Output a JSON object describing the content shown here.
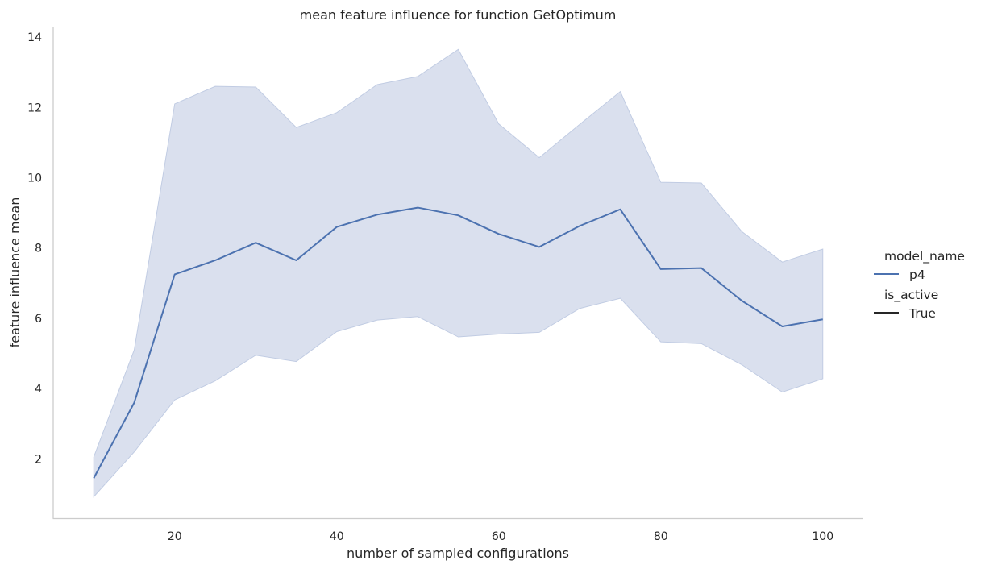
{
  "chart_data": {
    "type": "line",
    "title": "mean feature influence for function GetOptimum",
    "xlabel": "number of sampled configurations",
    "ylabel": "feature influence mean",
    "xlim": [
      5,
      105
    ],
    "ylim": [
      0.3,
      14.3
    ],
    "xticks": [
      20,
      40,
      60,
      80,
      100
    ],
    "yticks": [
      2,
      4,
      6,
      8,
      10,
      12,
      14
    ],
    "grid": false,
    "legend_position": "right",
    "x": [
      10,
      15,
      20,
      25,
      30,
      35,
      40,
      45,
      50,
      55,
      60,
      65,
      70,
      75,
      80,
      85,
      90,
      95,
      100
    ],
    "series": [
      {
        "name": "p4",
        "color": "#4c72b0",
        "band_color": "#c1cce3",
        "values": [
          1.45,
          3.6,
          7.25,
          7.65,
          8.15,
          7.65,
          8.6,
          8.95,
          9.15,
          8.93,
          8.4,
          8.03,
          8.63,
          9.1,
          7.4,
          7.43,
          6.5,
          5.77,
          5.97
        ],
        "ci_upper": [
          2.05,
          5.1,
          12.1,
          12.6,
          12.58,
          11.43,
          11.85,
          12.65,
          12.88,
          13.65,
          11.53,
          10.57,
          11.52,
          12.45,
          9.87,
          9.85,
          8.47,
          7.6,
          7.97
        ],
        "ci_lower": [
          0.92,
          2.2,
          3.68,
          4.22,
          4.95,
          4.77,
          5.62,
          5.95,
          6.05,
          5.47,
          5.55,
          5.6,
          6.28,
          6.57,
          5.33,
          5.28,
          4.68,
          3.9,
          4.28
        ]
      }
    ],
    "legend": {
      "title1": "model_name",
      "item1": "p4",
      "title2": "is_active",
      "item2": "True",
      "style_line_color": "#262626"
    }
  }
}
